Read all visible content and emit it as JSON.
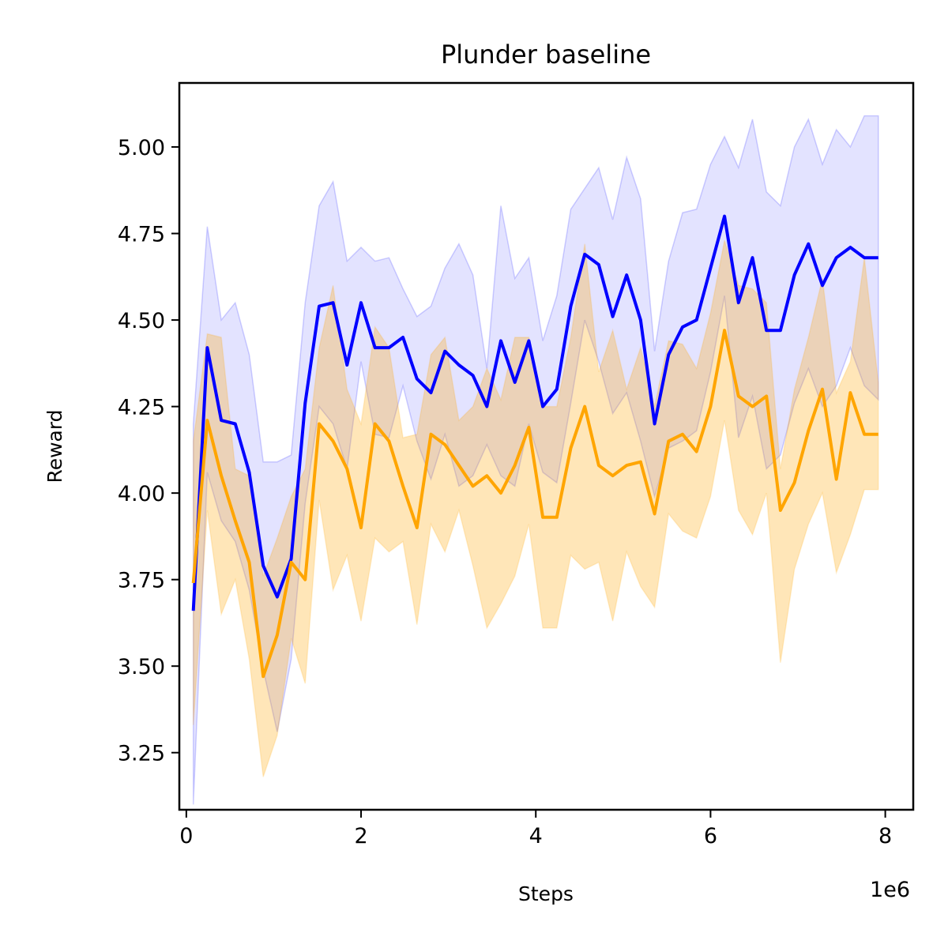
{
  "chart_data": {
    "type": "line",
    "title": "Plunder baseline",
    "xlabel": "Steps",
    "ylabel": "Reward",
    "x_offset_label": "1e6",
    "xlim": [
      -0.08,
      8.32
    ],
    "ylim": [
      3.085,
      5.185
    ],
    "x_ticks": [
      0,
      2,
      4,
      6,
      8
    ],
    "y_ticks": [
      3.25,
      3.5,
      3.75,
      4.0,
      4.25,
      4.5,
      4.75,
      5.0
    ],
    "x_tick_labels": [
      "0",
      "2",
      "4",
      "6",
      "8"
    ],
    "y_tick_labels": [
      "3.25",
      "3.50",
      "3.75",
      "4.00",
      "4.25",
      "4.50",
      "4.75",
      "5.00"
    ],
    "grid": false,
    "x": [
      0.08,
      0.24,
      0.4,
      0.56,
      0.72,
      0.88,
      1.04,
      1.2,
      1.36,
      1.52,
      1.68,
      1.84,
      2.0,
      2.16,
      2.32,
      2.48,
      2.64,
      2.8,
      2.96,
      3.12,
      3.28,
      3.44,
      3.6,
      3.76,
      3.92,
      4.08,
      4.24,
      4.4,
      4.56,
      4.72,
      4.88,
      5.04,
      5.2,
      5.36,
      5.52,
      5.68,
      5.84,
      6.0,
      6.16,
      6.32,
      6.48,
      6.64,
      6.8,
      6.96,
      7.12,
      7.28,
      7.44,
      7.6,
      7.76,
      7.92
    ],
    "series": [
      {
        "color": "#0000ff",
        "band_color": "#0000ff",
        "values": [
          3.66,
          4.42,
          4.21,
          4.2,
          4.06,
          3.79,
          3.7,
          3.81,
          4.26,
          4.54,
          4.55,
          4.37,
          4.55,
          4.42,
          4.42,
          4.45,
          4.33,
          4.29,
          4.41,
          4.37,
          4.34,
          4.25,
          4.44,
          4.32,
          4.44,
          4.25,
          4.3,
          4.54,
          4.69,
          4.66,
          4.51,
          4.63,
          4.5,
          4.2,
          4.4,
          4.48,
          4.5,
          4.65,
          4.8,
          4.55,
          4.68,
          4.47,
          4.47,
          4.63,
          4.72,
          4.6,
          4.68,
          4.71,
          4.68,
          4.68
        ],
        "upper": [
          4.2,
          4.77,
          4.5,
          4.55,
          4.4,
          4.09,
          4.09,
          4.11,
          4.55,
          4.83,
          4.9,
          4.67,
          4.71,
          4.67,
          4.68,
          4.59,
          4.51,
          4.54,
          4.65,
          4.72,
          4.63,
          4.36,
          4.83,
          4.62,
          4.68,
          4.44,
          4.57,
          4.82,
          4.88,
          4.94,
          4.79,
          4.97,
          4.85,
          4.41,
          4.67,
          4.81,
          4.82,
          4.95,
          5.03,
          4.94,
          5.08,
          4.87,
          4.83,
          5.0,
          5.08,
          4.95,
          5.05,
          5.0,
          5.09,
          5.09
        ],
        "lower": [
          3.1,
          4.06,
          3.92,
          3.86,
          3.72,
          3.49,
          3.31,
          3.52,
          3.97,
          4.25,
          4.2,
          4.07,
          4.38,
          4.17,
          4.16,
          4.31,
          4.15,
          4.04,
          4.17,
          4.02,
          4.05,
          4.14,
          4.05,
          4.02,
          4.2,
          4.06,
          4.03,
          4.26,
          4.5,
          4.38,
          4.23,
          4.29,
          4.15,
          3.99,
          4.13,
          4.15,
          4.18,
          4.35,
          4.57,
          4.16,
          4.28,
          4.07,
          4.11,
          4.26,
          4.36,
          4.25,
          4.31,
          4.42,
          4.31,
          4.27
        ]
      },
      {
        "color": "#ffa500",
        "band_color": "#ffa500",
        "values": [
          3.74,
          4.21,
          4.05,
          3.92,
          3.8,
          3.47,
          3.59,
          3.8,
          3.75,
          4.2,
          4.15,
          4.07,
          3.9,
          4.2,
          4.15,
          4.02,
          3.9,
          4.17,
          4.14,
          4.08,
          4.02,
          4.05,
          4.0,
          4.08,
          4.19,
          3.93,
          3.93,
          4.13,
          4.25,
          4.08,
          4.05,
          4.08,
          4.09,
          3.94,
          4.15,
          4.17,
          4.12,
          4.25,
          4.47,
          4.28,
          4.25,
          4.28,
          3.95,
          4.03,
          4.18,
          4.3,
          4.04,
          4.29,
          4.17,
          4.17
        ],
        "upper": [
          4.15,
          4.46,
          4.45,
          4.07,
          4.05,
          3.76,
          3.87,
          3.99,
          4.07,
          4.42,
          4.6,
          4.3,
          4.2,
          4.48,
          4.42,
          4.16,
          4.17,
          4.4,
          4.45,
          4.21,
          4.25,
          4.36,
          4.27,
          4.45,
          4.45,
          4.25,
          4.25,
          4.45,
          4.72,
          4.35,
          4.47,
          4.3,
          4.42,
          4.25,
          4.44,
          4.43,
          4.36,
          4.52,
          4.73,
          4.6,
          4.59,
          4.55,
          4.07,
          4.3,
          4.45,
          4.62,
          4.29,
          4.38,
          4.68,
          4.32
        ],
        "lower": [
          3.33,
          3.95,
          3.65,
          3.75,
          3.52,
          3.18,
          3.3,
          3.58,
          3.45,
          3.98,
          3.72,
          3.82,
          3.63,
          3.87,
          3.83,
          3.86,
          3.62,
          3.91,
          3.83,
          3.95,
          3.79,
          3.61,
          3.68,
          3.76,
          3.91,
          3.61,
          3.61,
          3.82,
          3.78,
          3.8,
          3.63,
          3.83,
          3.73,
          3.67,
          3.94,
          3.89,
          3.87,
          3.99,
          4.21,
          3.95,
          3.88,
          4.0,
          3.51,
          3.78,
          3.91,
          4.0,
          3.77,
          3.88,
          4.01,
          4.01
        ]
      }
    ]
  }
}
